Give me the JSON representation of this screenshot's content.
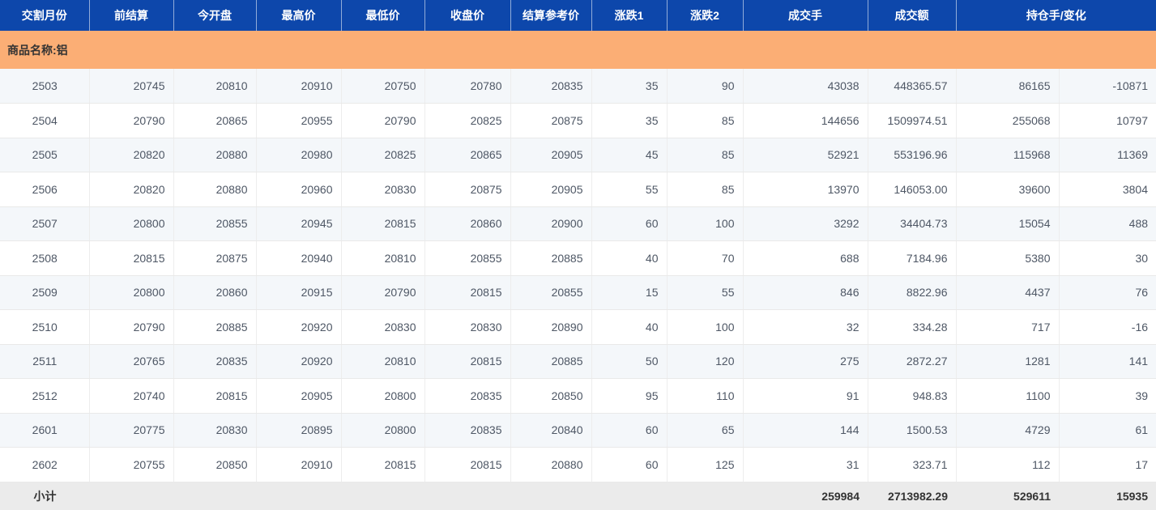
{
  "table": {
    "columns": [
      {
        "key": "delivery-month",
        "label": "交割月份",
        "span": 1
      },
      {
        "key": "prev-settlement",
        "label": "前结算",
        "span": 1
      },
      {
        "key": "today-open",
        "label": "今开盘",
        "span": 1
      },
      {
        "key": "high-price",
        "label": "最高价",
        "span": 1
      },
      {
        "key": "low-price",
        "label": "最低价",
        "span": 1
      },
      {
        "key": "close-price",
        "label": "收盘价",
        "span": 1
      },
      {
        "key": "settlement-reference",
        "label": "结算参考价",
        "span": 1
      },
      {
        "key": "change1",
        "label": "涨跌1",
        "span": 1
      },
      {
        "key": "change2",
        "label": "涨跌2",
        "span": 1
      },
      {
        "key": "volume",
        "label": "成交手",
        "span": 1
      },
      {
        "key": "turnover",
        "label": "成交额",
        "span": 1
      },
      {
        "key": "open-interest-change",
        "label": "持仓手/变化",
        "span": 2
      }
    ],
    "group_row": {
      "label": "商品名称:铝"
    },
    "rows": [
      [
        "2503",
        "20745",
        "20810",
        "20910",
        "20750",
        "20780",
        "20835",
        "35",
        "90",
        "43038",
        "448365.57",
        "86165",
        "-10871"
      ],
      [
        "2504",
        "20790",
        "20865",
        "20955",
        "20790",
        "20825",
        "20875",
        "35",
        "85",
        "144656",
        "1509974.51",
        "255068",
        "10797"
      ],
      [
        "2505",
        "20820",
        "20880",
        "20980",
        "20825",
        "20865",
        "20905",
        "45",
        "85",
        "52921",
        "553196.96",
        "115968",
        "11369"
      ],
      [
        "2506",
        "20820",
        "20880",
        "20960",
        "20830",
        "20875",
        "20905",
        "55",
        "85",
        "13970",
        "146053.00",
        "39600",
        "3804"
      ],
      [
        "2507",
        "20800",
        "20855",
        "20945",
        "20815",
        "20860",
        "20900",
        "60",
        "100",
        "3292",
        "34404.73",
        "15054",
        "488"
      ],
      [
        "2508",
        "20815",
        "20875",
        "20940",
        "20810",
        "20855",
        "20885",
        "40",
        "70",
        "688",
        "7184.96",
        "5380",
        "30"
      ],
      [
        "2509",
        "20800",
        "20860",
        "20915",
        "20790",
        "20815",
        "20855",
        "15",
        "55",
        "846",
        "8822.96",
        "4437",
        "76"
      ],
      [
        "2510",
        "20790",
        "20885",
        "20920",
        "20830",
        "20830",
        "20890",
        "40",
        "100",
        "32",
        "334.28",
        "717",
        "-16"
      ],
      [
        "2511",
        "20765",
        "20835",
        "20920",
        "20810",
        "20815",
        "20885",
        "50",
        "120",
        "275",
        "2872.27",
        "1281",
        "141"
      ],
      [
        "2512",
        "20740",
        "20815",
        "20905",
        "20800",
        "20835",
        "20850",
        "95",
        "110",
        "91",
        "948.83",
        "1100",
        "39"
      ],
      [
        "2601",
        "20775",
        "20830",
        "20895",
        "20800",
        "20835",
        "20840",
        "60",
        "65",
        "144",
        "1500.53",
        "4729",
        "61"
      ],
      [
        "2602",
        "20755",
        "20850",
        "20910",
        "20815",
        "20815",
        "20880",
        "60",
        "125",
        "31",
        "323.71",
        "112",
        "17"
      ]
    ],
    "subtotal_row": [
      "小计",
      "",
      "",
      "",
      "",
      "",
      "",
      "",
      "",
      "259984",
      "2713982.29",
      "529611",
      "15935"
    ]
  },
  "colors": {
    "header_bg": "#0d47ab",
    "header_text": "#ffffff",
    "group_bg": "#fbae75",
    "row_alt_bg": "#f4f7fa",
    "row_bg": "#ffffff",
    "subtotal_bg": "#ebebeb",
    "cell_text": "#4e5765"
  },
  "column_keys": [
    "delivery-month",
    "prev-settlement",
    "today-open",
    "high-price",
    "low-price",
    "close-price",
    "settlement-reference",
    "change1",
    "change2",
    "volume",
    "turnover",
    "open-interest",
    "oi-change"
  ]
}
